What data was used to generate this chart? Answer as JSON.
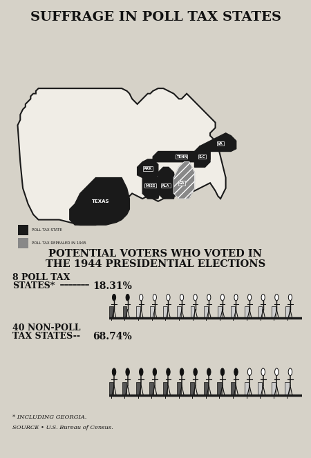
{
  "title": "SUFFRAGE IN POLL TAX STATES",
  "subtitle1": "POTENTIAL VOTERS WHO VOTED IN",
  "subtitle2": "THE 1944 PRESIDENTIAL ELECTIONS",
  "label1a": "8 POLL TAX",
  "label1b": "STATES",
  "asterisk": "*",
  "dash_label": "---- ",
  "pct1": "18.31%",
  "label2a": "40 NON-POLL",
  "label2b": "TAX STATES-- ",
  "pct2": "68.74%",
  "footnote1": "* INCLUDING GEORGIA.",
  "footnote2": "SOURCE • U.S. Bureau of Census.",
  "bg_color": "#d6d2c8",
  "text_color": "#111111",
  "legend1": "POLL TAX STATE",
  "legend2": "POLL TAX REPEALED IN 1945",
  "dark_color": "#1a1a1a",
  "gray_color": "#888888",
  "map_bg": "#f0ede6",
  "n_poll_total": 14,
  "n_poll_filled": 2,
  "n_nonpoll_total": 14,
  "n_nonpoll_filled": 10
}
